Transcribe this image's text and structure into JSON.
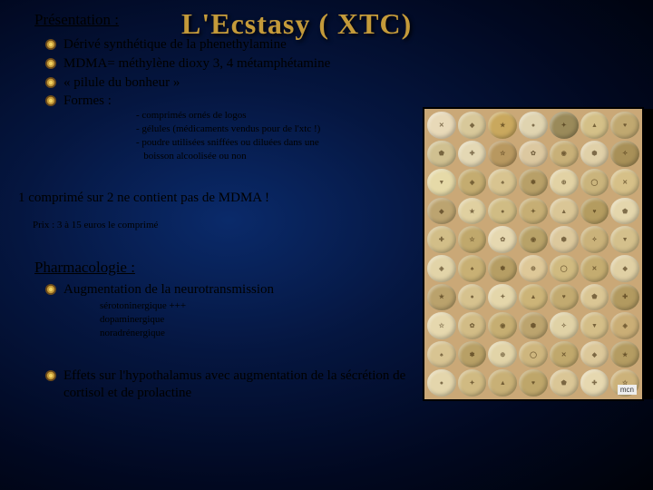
{
  "title": "L'Ecstasy ( XTC)",
  "section1": {
    "heading": "Présentation :",
    "bullets": [
      "Dérivé synthétique de la phenethylamine",
      "MDMA= méthylène dioxy 3, 4 métamphétamine",
      "« pilule du bonheur »",
      "Formes :"
    ],
    "sub": [
      "- comprimés ornés de logos",
      "- gélules (médicaments vendus pour de l'xtc !)",
      "- poudre utilisées sniffées ou diluées dans une",
      "   boisson alcoolisée ou non"
    ],
    "note": "1 comprimé sur 2 ne contient pas de MDMA !",
    "price": "Prix :  3 à 15 euros le comprimé"
  },
  "section2": {
    "heading": "Pharmacologie :",
    "bullet1": "Augmentation de la neurotransmission",
    "sub": [
      "sérotoninergique +++",
      "dopaminergique",
      "noradrénergique"
    ],
    "bullet2": "Effets sur l'hypothalamus avec augmentation de la sécrétion de cortisol et de prolactine"
  },
  "photo": {
    "label": "mcn",
    "pill_colors": [
      "#e8d9b8",
      "#d8c89a",
      "#c9a85e",
      "#e0d4b0",
      "#9a8a5a",
      "#d4c088",
      "#c0a870",
      "#d0c090",
      "#e4d8b4",
      "#b89860",
      "#dcc8a0",
      "#c8b078",
      "#e0d0a8",
      "#a89058",
      "#e6daa8",
      "#c4ac70",
      "#d8c490",
      "#b8a068",
      "#e2d2a4",
      "#cab47c",
      "#d6c088",
      "#bca470",
      "#e0d0a0",
      "#d0bc84",
      "#c6ae74",
      "#dac696",
      "#b49c60",
      "#e4d6ac",
      "#d2be88",
      "#c0a86c",
      "#e6d8b0",
      "#b8a268",
      "#dcc89c",
      "#cab27a",
      "#d4c08c",
      "#e2d4a8",
      "#c8b074",
      "#b69e64",
      "#dec898",
      "#d0ba80",
      "#c4ac70",
      "#e0d0a4",
      "#baa26c",
      "#d6c28e",
      "#e4d6aa",
      "#ccb478",
      "#c2aa70",
      "#dac694",
      "#b29a60",
      "#e6d8ae",
      "#d2bc86",
      "#c6ae72",
      "#bca46e",
      "#e0d2a6",
      "#d4be88",
      "#caae76",
      "#d8c492",
      "#b8a066",
      "#e2d4a8",
      "#ceb67e",
      "#c0a86c",
      "#dcc89a",
      "#b49c62",
      "#e4d6ac",
      "#d0ba82",
      "#c8b076",
      "#bea66a",
      "#dac696",
      "#e6d8b0",
      "#ccb27a"
    ],
    "pill_marks": [
      "✕",
      "◆",
      "★",
      "●",
      "✦",
      "▲",
      "♥",
      "⬟",
      "✚",
      "☆",
      "✿",
      "◉",
      "⬢",
      "✧",
      "▼",
      "◈",
      "♠",
      "✽",
      "⊕",
      "◯"
    ]
  },
  "bullet_style": {
    "outer": "#6b4a1a",
    "ring": "#c49a3a",
    "center": "#f0d060"
  }
}
